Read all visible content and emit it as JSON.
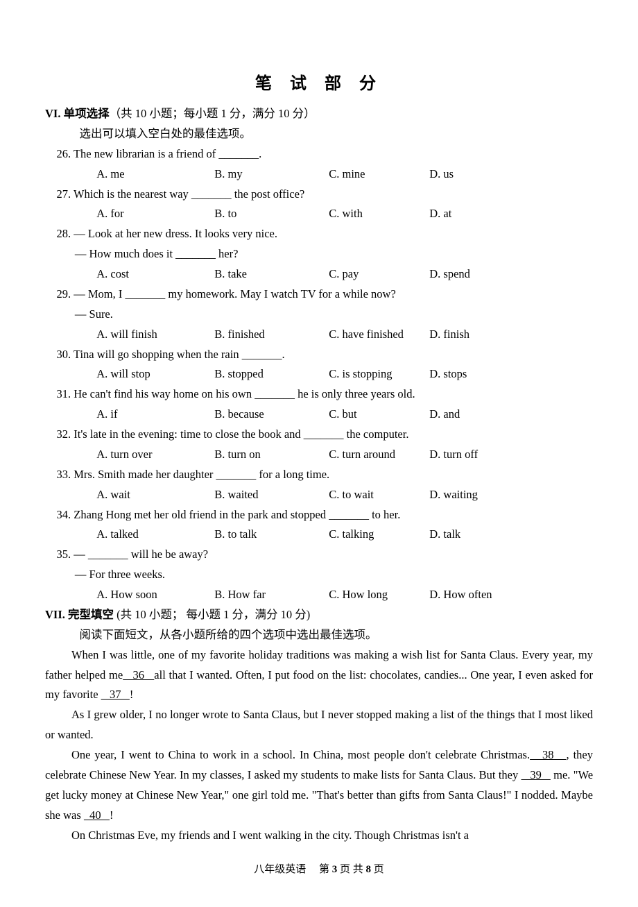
{
  "title": "笔 试 部 分",
  "sectionVI": {
    "num": "VI. ",
    "name": "单项选择",
    "meta": "（共 10 小题；每小题 1 分，满分 10 分）",
    "instr": "选出可以填入空白处的最佳选项。"
  },
  "q26": {
    "stem": "26. The new librarian is a friend of _______.",
    "A": "A. me",
    "B": "B. my",
    "C": "C. mine",
    "D": "D. us"
  },
  "q27": {
    "stem": "27. Which is the nearest way _______ the post office?",
    "A": "A. for",
    "B": "B. to",
    "C": "C. with",
    "D": "D. at"
  },
  "q28": {
    "l1": "28. — Look at her new dress. It looks very nice.",
    "l2": "— How much does it _______ her?",
    "A": "A. cost",
    "B": "B. take",
    "C": "C. pay",
    "D": "D. spend"
  },
  "q29": {
    "l1": "29. — Mom, I _______ my homework. May I watch TV for a while now?",
    "l2": "— Sure.",
    "A": "A. will finish",
    "B": "B. finished",
    "C": "C. have finished",
    "D": "D. finish"
  },
  "q30": {
    "stem": "30. Tina will go shopping when the rain _______.",
    "A": "A. will stop",
    "B": "B. stopped",
    "C": "C. is stopping",
    "D": "D. stops"
  },
  "q31": {
    "stem": "31. He can't find his way home on his own _______ he is only three years old.",
    "A": "A. if",
    "B": "B. because",
    "C": "C. but",
    "D": "D. and"
  },
  "q32": {
    "stem": "32. It's late in the evening: time to close the book and _______ the computer.",
    "A": "A. turn over",
    "B": "B. turn on",
    "C": "C. turn around",
    "D": "D. turn off"
  },
  "q33": {
    "stem": "33. Mrs. Smith made her daughter _______ for a long time.",
    "A": "A. wait",
    "B": "B. waited",
    "C": "C. to wait",
    "D": "D. waiting"
  },
  "q34": {
    "stem": "34. Zhang Hong met her old friend in the park and stopped _______ to her.",
    "A": "A. talked",
    "B": "B. to talk",
    "C": "C. talking",
    "D": "D. talk"
  },
  "q35": {
    "l1": "35. — _______ will he be away?",
    "l2": "— For three weeks.",
    "A": "A. How soon",
    "B": "B. How far",
    "C": "C. How long",
    "D": "D. How often"
  },
  "sectionVII": {
    "num": "VII. ",
    "name": "完型填空",
    "meta": " (共 10 小题；  每小题 1 分，满分 10 分)",
    "instr": "阅读下面短文，从各小题所给的四个选项中选出最佳选项。"
  },
  "passage": {
    "p1a": "When I was little, one of my favorite holiday traditions was making a wish list for Santa Claus. Every year, my father helped me",
    "b36": "   36   ",
    "p1b": "all that I wanted. Often, I put food on the list: chocolates, candies... One year, I even asked for my favorite ",
    "b37": "   37   ",
    "p1c": "!",
    "p2": "As I grew older, I no longer wrote to Santa Claus, but I never stopped making a list of the things that I most liked or wanted.",
    "p3a": "One year, I went to China to work in a school. In China, most people don't celebrate Christmas.",
    "b38": "   38   ",
    "p3b": ", they celebrate Chinese New Year. In my classes, I asked my students to make lists for Santa Claus. But they ",
    "b39": "   39   ",
    "p3c": " me. \"We get lucky money at Chinese New Year,\" one girl told me. \"That's better than gifts from Santa Claus!\" I nodded. Maybe she was ",
    "b40": "  40   ",
    "p3d": "!",
    "p4": "On Christmas Eve, my friends and I went walking in the city. Though Christmas isn't a"
  },
  "footer": {
    "subject": "八年级英语",
    "pg_pre": "第 ",
    "pg_cur": "3",
    "pg_mid": " 页 共 ",
    "pg_tot": "8",
    "pg_post": " 页"
  }
}
